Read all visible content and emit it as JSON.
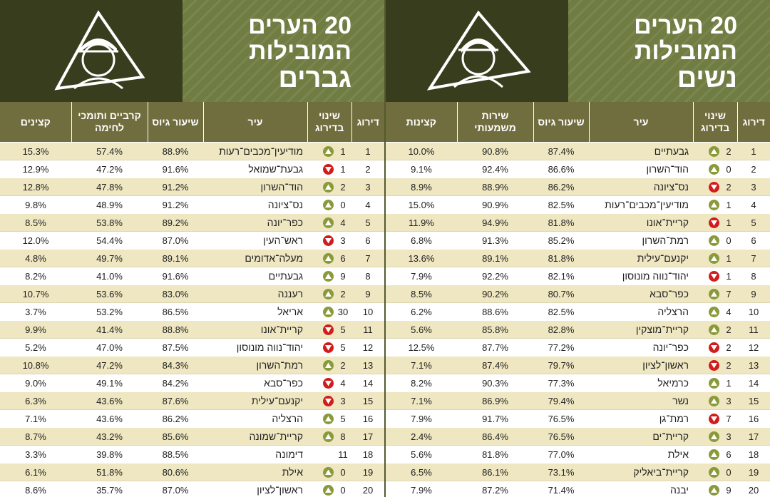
{
  "women": {
    "title_line1": "20 הערים",
    "title_line2": "המובילות",
    "title_line3": "נשים",
    "headers": {
      "rank": "דירוג",
      "change": "שינוי בדירוג",
      "city": "עיר",
      "recruit": "שיעור גיוס",
      "extra": "שירות משמעותי",
      "officers": "קצינות"
    },
    "rows": [
      {
        "rank": "1",
        "change": "2",
        "dir": "up",
        "city": "גבעתיים",
        "recruit": "87.4%",
        "extra": "90.8%",
        "officers": "10.0%"
      },
      {
        "rank": "2",
        "change": "0",
        "dir": "up",
        "city": "הוד־השרון",
        "recruit": "86.6%",
        "extra": "92.4%",
        "officers": "9.1%"
      },
      {
        "rank": "3",
        "change": "2",
        "dir": "down",
        "city": "נס־ציונה",
        "recruit": "86.2%",
        "extra": "88.9%",
        "officers": "8.9%"
      },
      {
        "rank": "4",
        "change": "1",
        "dir": "up",
        "city": "מודיעין־מכבים־רעות",
        "recruit": "82.5%",
        "extra": "90.9%",
        "officers": "15.0%"
      },
      {
        "rank": "5",
        "change": "1",
        "dir": "down",
        "city": "קריית־אונו",
        "recruit": "81.8%",
        "extra": "94.9%",
        "officers": "11.9%"
      },
      {
        "rank": "6",
        "change": "0",
        "dir": "up",
        "city": "רמת־השרון",
        "recruit": "85.2%",
        "extra": "91.3%",
        "officers": "6.8%"
      },
      {
        "rank": "7",
        "change": "1",
        "dir": "up",
        "city": "יקנעם־עילית",
        "recruit": "81.8%",
        "extra": "89.1%",
        "officers": "13.6%"
      },
      {
        "rank": "8",
        "change": "1",
        "dir": "down",
        "city": "יהוד־נווה מונוסון",
        "recruit": "82.1%",
        "extra": "92.2%",
        "officers": "7.9%"
      },
      {
        "rank": "9",
        "change": "7",
        "dir": "up",
        "city": "כפר־סבא",
        "recruit": "80.7%",
        "extra": "90.2%",
        "officers": "8.5%"
      },
      {
        "rank": "10",
        "change": "4",
        "dir": "up",
        "city": "הרצליה",
        "recruit": "82.5%",
        "extra": "88.6%",
        "officers": "6.2%"
      },
      {
        "rank": "11",
        "change": "2",
        "dir": "up",
        "city": "קריית־מוצקין",
        "recruit": "82.8%",
        "extra": "85.8%",
        "officers": "5.6%"
      },
      {
        "rank": "12",
        "change": "2",
        "dir": "down",
        "city": "כפר־יונה",
        "recruit": "77.2%",
        "extra": "87.7%",
        "officers": "12.5%"
      },
      {
        "rank": "13",
        "change": "2",
        "dir": "down",
        "city": "ראשון־לציון",
        "recruit": "79.7%",
        "extra": "87.4%",
        "officers": "7.1%"
      },
      {
        "rank": "14",
        "change": "1",
        "dir": "up",
        "city": "כרמיאל",
        "recruit": "77.3%",
        "extra": "90.3%",
        "officers": "8.2%"
      },
      {
        "rank": "15",
        "change": "3",
        "dir": "up",
        "city": "נשר",
        "recruit": "79.4%",
        "extra": "86.9%",
        "officers": "7.1%"
      },
      {
        "rank": "16",
        "change": "7",
        "dir": "down",
        "city": "רמת־גן",
        "recruit": "76.5%",
        "extra": "91.7%",
        "officers": "7.9%"
      },
      {
        "rank": "17",
        "change": "3",
        "dir": "up",
        "city": "קריית־ים",
        "recruit": "76.5%",
        "extra": "86.4%",
        "officers": "2.4%"
      },
      {
        "rank": "18",
        "change": "6",
        "dir": "up",
        "city": "אילת",
        "recruit": "77.0%",
        "extra": "81.8%",
        "officers": "5.6%"
      },
      {
        "rank": "19",
        "change": "0",
        "dir": "up",
        "city": "קריית־ביאליק",
        "recruit": "73.1%",
        "extra": "86.1%",
        "officers": "6.5%"
      },
      {
        "rank": "20",
        "change": "9",
        "dir": "up",
        "city": "יבנה",
        "recruit": "71.4%",
        "extra": "87.2%",
        "officers": "7.9%"
      }
    ]
  },
  "men": {
    "title_line1": "20 הערים",
    "title_line2": "המובילות",
    "title_line3": "גברים",
    "headers": {
      "rank": "דירוג",
      "change": "שינוי בדירוג",
      "city": "עיר",
      "recruit": "שיעור גיוס",
      "extra": "קרביים ותומכי לחימה",
      "officers": "קצינים"
    },
    "rows": [
      {
        "rank": "1",
        "change": "1",
        "dir": "up",
        "city": "מודיעין־מכבים־רעות",
        "recruit": "88.9%",
        "extra": "57.4%",
        "officers": "15.3%"
      },
      {
        "rank": "2",
        "change": "1",
        "dir": "down",
        "city": "גבעת־שמואל",
        "recruit": "91.6%",
        "extra": "47.2%",
        "officers": "12.9%"
      },
      {
        "rank": "3",
        "change": "2",
        "dir": "up",
        "city": "הוד־השרון",
        "recruit": "91.2%",
        "extra": "47.8%",
        "officers": "12.8%"
      },
      {
        "rank": "4",
        "change": "0",
        "dir": "up",
        "city": "נס־ציונה",
        "recruit": "91.2%",
        "extra": "48.9%",
        "officers": "9.8%"
      },
      {
        "rank": "5",
        "change": "4",
        "dir": "up",
        "city": "כפר־יונה",
        "recruit": "89.2%",
        "extra": "53.8%",
        "officers": "8.5%"
      },
      {
        "rank": "6",
        "change": "3",
        "dir": "down",
        "city": "ראש־העין",
        "recruit": "87.0%",
        "extra": "54.4%",
        "officers": "12.0%"
      },
      {
        "rank": "7",
        "change": "6",
        "dir": "up",
        "city": "מעלה־אדומים",
        "recruit": "89.1%",
        "extra": "49.7%",
        "officers": "4.8%"
      },
      {
        "rank": "8",
        "change": "9",
        "dir": "up",
        "city": "גבעתיים",
        "recruit": "91.6%",
        "extra": "41.0%",
        "officers": "8.2%"
      },
      {
        "rank": "9",
        "change": "2",
        "dir": "up",
        "city": "רעננה",
        "recruit": "83.0%",
        "extra": "53.6%",
        "officers": "10.7%"
      },
      {
        "rank": "10",
        "change": "30",
        "dir": "up",
        "city": "אריאל",
        "recruit": "86.5%",
        "extra": "53.2%",
        "officers": "3.7%"
      },
      {
        "rank": "11",
        "change": "5",
        "dir": "down",
        "city": "קריית־אונו",
        "recruit": "88.8%",
        "extra": "41.4%",
        "officers": "9.9%"
      },
      {
        "rank": "12",
        "change": "5",
        "dir": "down",
        "city": "יהוד־נווה מונוסון",
        "recruit": "87.5%",
        "extra": "47.0%",
        "officers": "5.2%"
      },
      {
        "rank": "13",
        "change": "2",
        "dir": "up",
        "city": "רמת־השרון",
        "recruit": "84.3%",
        "extra": "47.2%",
        "officers": "10.8%"
      },
      {
        "rank": "14",
        "change": "4",
        "dir": "down",
        "city": "כפר־סבא",
        "recruit": "84.2%",
        "extra": "49.1%",
        "officers": "9.0%"
      },
      {
        "rank": "15",
        "change": "3",
        "dir": "down",
        "city": "יקנעם־עילית",
        "recruit": "87.6%",
        "extra": "43.6%",
        "officers": "6.3%"
      },
      {
        "rank": "16",
        "change": "5",
        "dir": "up",
        "city": "הרצליה",
        "recruit": "86.2%",
        "extra": "43.6%",
        "officers": "7.1%"
      },
      {
        "rank": "17",
        "change": "8",
        "dir": "up",
        "city": "קריית־שמונה",
        "recruit": "85.6%",
        "extra": "43.2%",
        "officers": "8.7%"
      },
      {
        "rank": "18",
        "change": "11",
        "dir": "none",
        "city": "דימונה",
        "recruit": "88.5%",
        "extra": "39.8%",
        "officers": "3.3%"
      },
      {
        "rank": "19",
        "change": "0",
        "dir": "up",
        "city": "אילת",
        "recruit": "80.6%",
        "extra": "51.8%",
        "officers": "6.1%"
      },
      {
        "rank": "20",
        "change": "0",
        "dir": "up",
        "city": "ראשון־לציון",
        "recruit": "87.0%",
        "extra": "35.7%",
        "officers": "8.6%"
      }
    ]
  },
  "icons": {
    "logo": "soldier-triangle-icon",
    "up": "triangle-up-icon",
    "down": "triangle-down-icon"
  },
  "colors": {
    "dark_olive": "#383e1d",
    "olive": "#6f7d43",
    "header_row": "#706d3e",
    "stripe": "#efe7c1",
    "up": "#8a9a3a",
    "down": "#d21c1c"
  }
}
